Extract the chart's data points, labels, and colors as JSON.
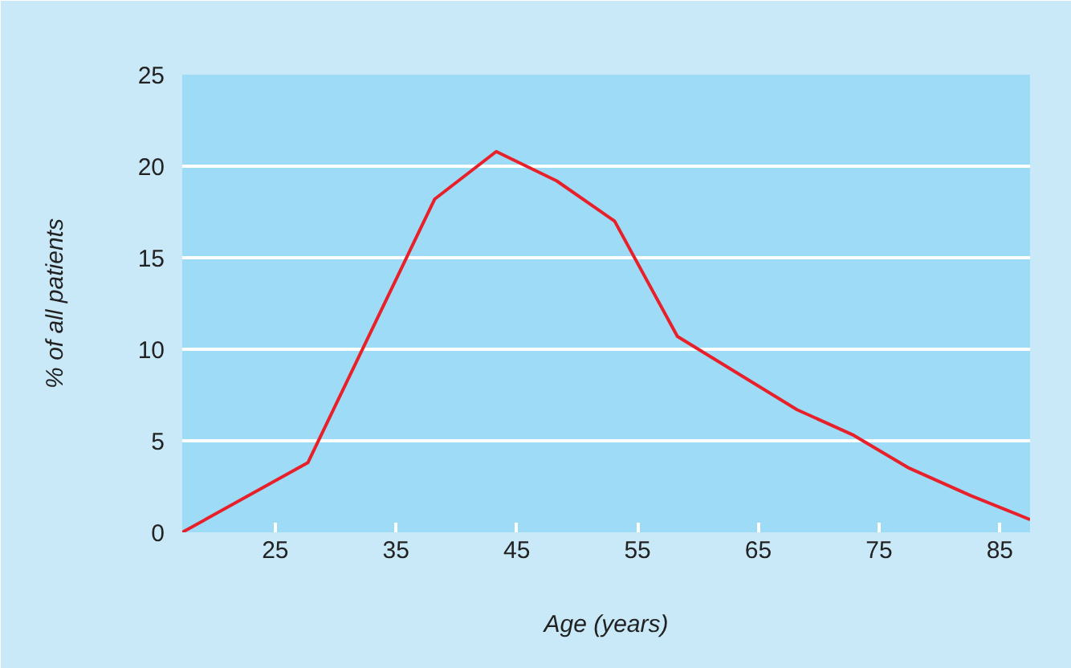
{
  "chart_data": {
    "type": "line",
    "xlabel": "Age (years)",
    "ylabel": "% of all patients",
    "x": [
      17.3,
      27.7,
      38.2,
      43.3,
      48.3,
      53.1,
      58.3,
      68.2,
      72.9,
      77.5,
      82.6,
      87.5
    ],
    "series": [
      {
        "color": "#e8202a",
        "values": [
          0,
          3.8,
          18.2,
          20.8,
          19.2,
          17.0,
          10.7,
          6.7,
          5.3,
          3.5,
          2.0,
          0.7
        ]
      }
    ],
    "xlim": [
      17.3,
      87.5
    ],
    "ylim": [
      0,
      25
    ],
    "xticks": [
      25,
      35,
      45,
      55,
      65,
      75,
      85
    ],
    "yticks": [
      0,
      5,
      10,
      15,
      20,
      25
    ],
    "grid": "y",
    "marker": "none",
    "line_style": "solid"
  }
}
